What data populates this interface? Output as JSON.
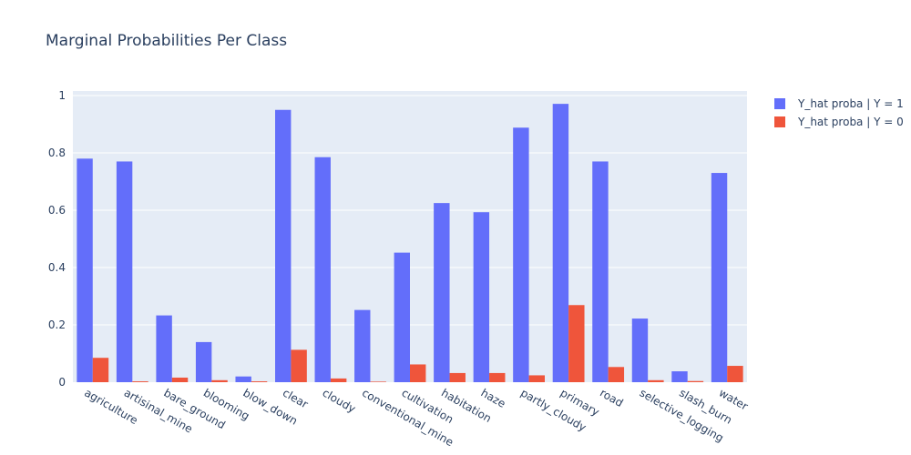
{
  "chart_data": {
    "type": "bar",
    "title": "Marginal Probabilities Per Class",
    "xlabel": "",
    "ylabel": "",
    "ylim": [
      0,
      1
    ],
    "yticks": [
      "0",
      "0.2",
      "0.4",
      "0.6",
      "0.8",
      "1"
    ],
    "grid": true,
    "legend_position": "top-right",
    "categories": [
      "agriculture",
      "artisinal_mine",
      "bare_ground",
      "blooming",
      "blow_down",
      "clear",
      "cloudy",
      "conventional_mine",
      "cultivation",
      "habitation",
      "haze",
      "partly_cloudy",
      "primary",
      "road",
      "selective_logging",
      "slash_burn",
      "water"
    ],
    "series": [
      {
        "name": "Y_hat proba | Y = 1",
        "color": "#636efa",
        "values": [
          0.78,
          0.77,
          0.233,
          0.14,
          0.02,
          0.95,
          0.785,
          0.252,
          0.452,
          0.625,
          0.593,
          0.888,
          0.971,
          0.77,
          0.222,
          0.038,
          0.73
        ]
      },
      {
        "name": "Y_hat proba | Y = 0",
        "color": "#ef553b",
        "values": [
          0.085,
          0.003,
          0.016,
          0.007,
          0.003,
          0.113,
          0.013,
          0.002,
          0.062,
          0.032,
          0.032,
          0.024,
          0.269,
          0.053,
          0.007,
          0.004,
          0.057
        ]
      }
    ]
  }
}
